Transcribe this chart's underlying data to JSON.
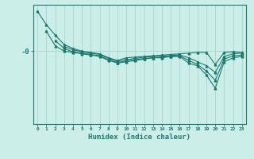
{
  "xlabel": "Humidex (Indice chaleur)",
  "background_color": "#cceee8",
  "grid_color": "#aad4ce",
  "line_color": "#1a7a6e",
  "xlim": [
    -0.5,
    23.5
  ],
  "ylim": [
    -5.5,
    3.5
  ],
  "ytick_val": 0,
  "ytick_label": "-0",
  "series": [
    [
      3.0,
      2.0,
      1.2,
      0.5,
      0.2,
      0.0,
      -0.1,
      -0.2,
      -0.5,
      -0.7,
      -0.5,
      -0.45,
      -0.4,
      -0.35,
      -0.3,
      -0.25,
      -0.2,
      -0.15,
      -0.1,
      -0.1,
      -1.0,
      -0.1,
      -0.05,
      -0.1
    ],
    [
      null,
      1.5,
      0.4,
      0.0,
      -0.1,
      -0.2,
      -0.3,
      -0.4,
      -0.7,
      -0.9,
      -0.8,
      -0.7,
      -0.6,
      -0.5,
      -0.5,
      -0.4,
      -0.4,
      -0.9,
      -1.1,
      -1.8,
      -2.8,
      -0.8,
      -0.5,
      -0.4
    ],
    [
      null,
      null,
      0.8,
      0.2,
      -0.05,
      -0.15,
      -0.25,
      -0.35,
      -0.65,
      -0.85,
      -0.75,
      -0.65,
      -0.55,
      -0.5,
      -0.45,
      -0.4,
      -0.35,
      -0.7,
      -1.0,
      -1.5,
      -2.2,
      -0.6,
      -0.35,
      -0.3
    ],
    [
      null,
      null,
      null,
      0.35,
      0.1,
      -0.05,
      -0.15,
      -0.25,
      -0.55,
      -0.75,
      -0.65,
      -0.55,
      -0.45,
      -0.4,
      -0.38,
      -0.33,
      -0.28,
      -0.5,
      -0.8,
      -1.1,
      -1.6,
      -0.4,
      -0.2,
      -0.15
    ]
  ],
  "x": [
    0,
    1,
    2,
    3,
    4,
    5,
    6,
    7,
    8,
    9,
    10,
    11,
    12,
    13,
    14,
    15,
    16,
    17,
    18,
    19,
    20,
    21,
    22,
    23
  ]
}
